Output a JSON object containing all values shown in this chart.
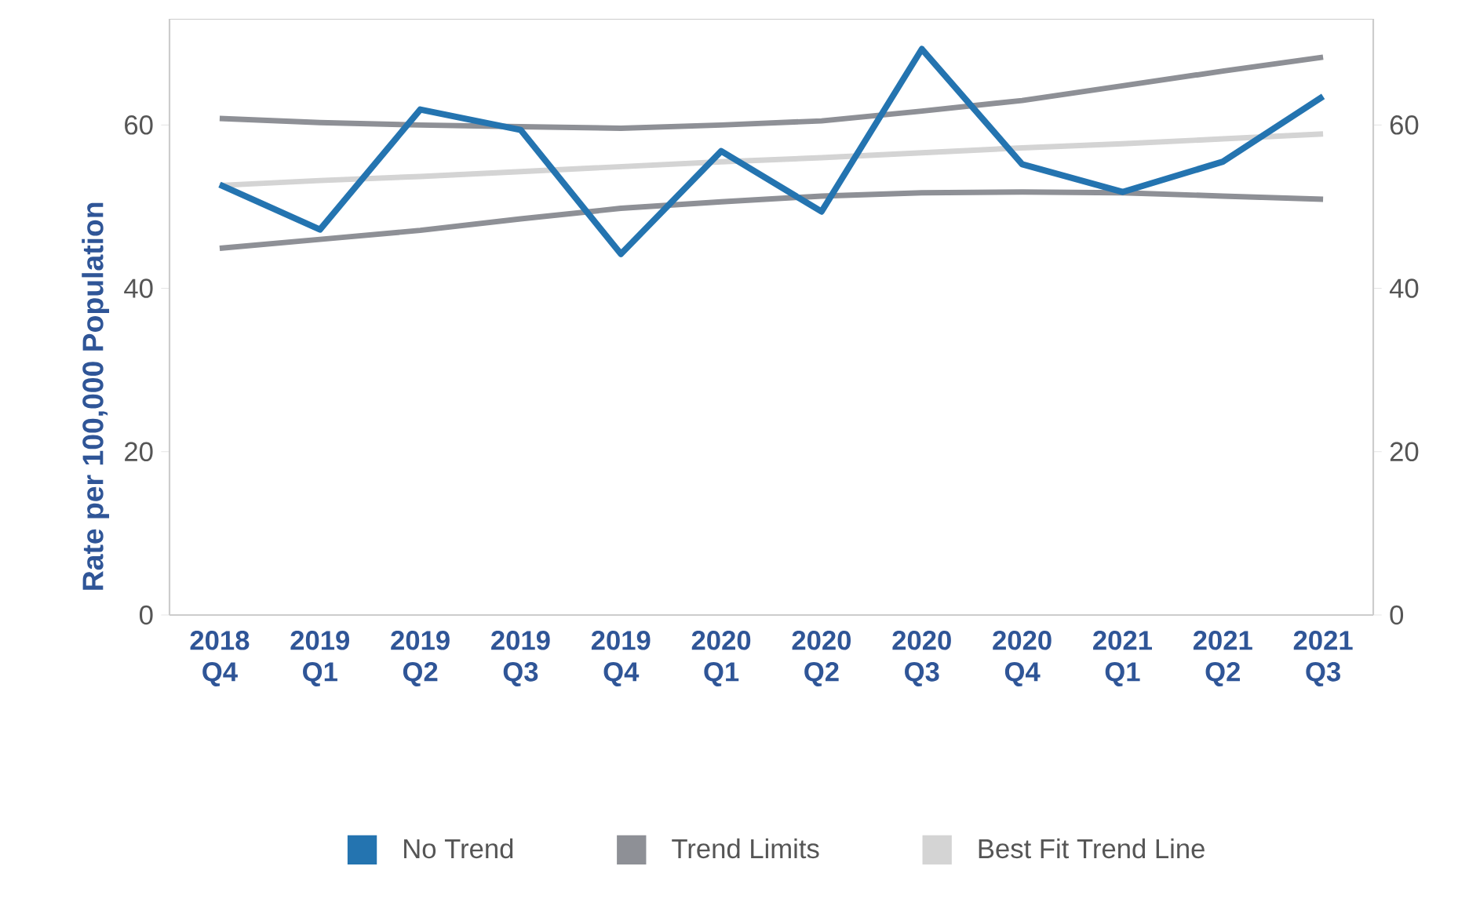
{
  "chart_data": {
    "type": "line",
    "ylabel": "Rate per 100,000 Population",
    "categories": [
      "2018 Q4",
      "2019 Q1",
      "2019 Q2",
      "2019 Q3",
      "2019 Q4",
      "2020 Q1",
      "2020 Q2",
      "2020 Q3",
      "2020 Q4",
      "2021 Q1",
      "2021 Q2",
      "2021 Q3"
    ],
    "series": [
      {
        "name": "No Trend",
        "color": "#2474b0",
        "values": [
          52.7,
          47.2,
          61.9,
          59.4,
          44.2,
          56.8,
          49.4,
          69.3,
          55.2,
          51.8,
          55.5,
          63.5
        ]
      },
      {
        "name": "Trend Limits",
        "color": "#8e9096",
        "values": [
          60.8,
          60.3,
          60.0,
          59.8,
          59.6,
          60.0,
          60.5,
          61.7,
          63.0,
          64.8,
          66.6,
          68.3
        ]
      },
      {
        "name": "Best Fit Trend Line",
        "color": "#d4d4d4",
        "values": [
          52.6,
          53.2,
          53.7,
          54.3,
          54.9,
          55.5,
          56.0,
          56.6,
          57.2,
          57.7,
          58.3,
          58.9
        ]
      },
      {
        "color": "#8e9096",
        "values": [
          44.9,
          46.0,
          47.1,
          48.5,
          49.8,
          50.6,
          51.3,
          51.7,
          51.8,
          51.7,
          51.3,
          50.9
        ]
      }
    ],
    "ylim": [
      0,
      73
    ],
    "yticks": [
      0,
      20,
      40,
      60
    ],
    "y2lim": [
      0,
      73
    ],
    "y2ticks": [
      0,
      20,
      40,
      60
    ],
    "legend": "bottom"
  }
}
